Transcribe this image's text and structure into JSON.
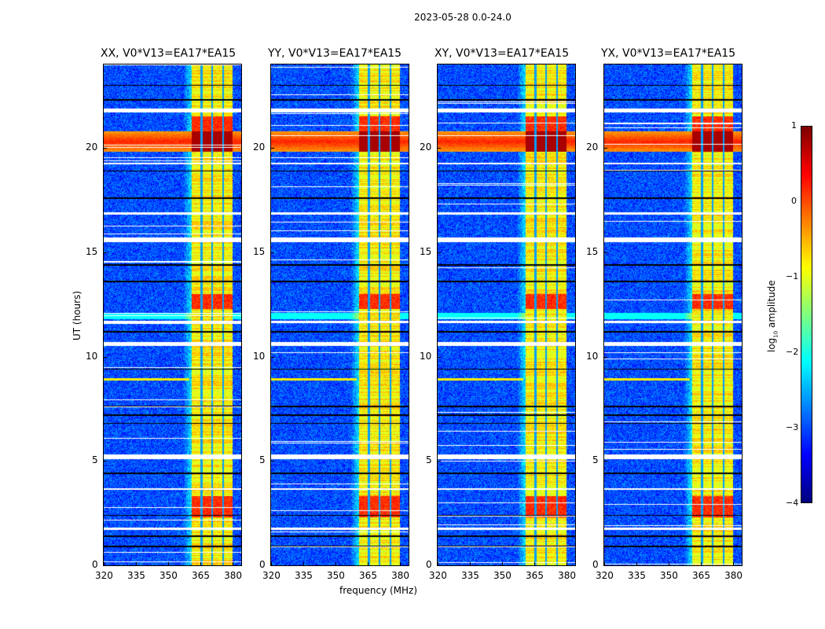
{
  "chart_data": {
    "type": "heatmap",
    "suptitle": "2023-05-28 0.0-24.0",
    "xlabel": "frequency (MHz)",
    "ylabel": "UT (hours)",
    "xlim": [
      320,
      384
    ],
    "ylim": [
      0,
      24
    ],
    "xticks": [
      "320",
      "335",
      "350",
      "365",
      "380"
    ],
    "yticks": [
      "0",
      "5",
      "10",
      "15",
      "20"
    ],
    "panels": [
      {
        "title": "XX, V0*V13=EA17*EA15"
      },
      {
        "title": "YY, V0*V13=EA17*EA15"
      },
      {
        "title": "XY, V0*V13=EA17*EA15"
      },
      {
        "title": "YX, V0*V13=EA17*EA15"
      }
    ],
    "colorbar": {
      "label": "log10 amplitude",
      "label_main": "log",
      "label_sub": "10",
      "label_rest": " amplitude",
      "range": [
        -4,
        1
      ],
      "ticks": [
        "1",
        "0",
        "−1",
        "−2",
        "−3",
        "−4"
      ],
      "colormap": "jet"
    },
    "features": {
      "background_log_amplitude": -3,
      "bright_band_MHz": [
        361,
        380
      ],
      "band_log_amplitude": -1,
      "band_gaps_MHz": [
        365.5,
        370.5,
        375.5
      ],
      "strong_rfi_hours": [
        [
          19.8,
          21.5
        ],
        [
          12.3,
          13.0
        ],
        [
          2.3,
          3.3
        ]
      ],
      "flagged_white_hours": [
        [
          21.7,
          21.9
        ],
        [
          15.5,
          15.7
        ],
        [
          10.5,
          10.7
        ],
        [
          5.1,
          5.3
        ],
        [
          1.7,
          1.8
        ],
        [
          3.6,
          3.7
        ],
        [
          11.6,
          11.7
        ],
        [
          16.8,
          16.9
        ],
        [
          19.2,
          19.3
        ]
      ],
      "dark_line_hours": [
        0.9,
        1.4,
        2.4,
        4.4,
        6.8,
        7.2,
        7.6,
        9.4,
        11.2,
        13.6,
        14.4,
        17.6,
        18.9,
        22.3,
        23.0
      ]
    }
  }
}
